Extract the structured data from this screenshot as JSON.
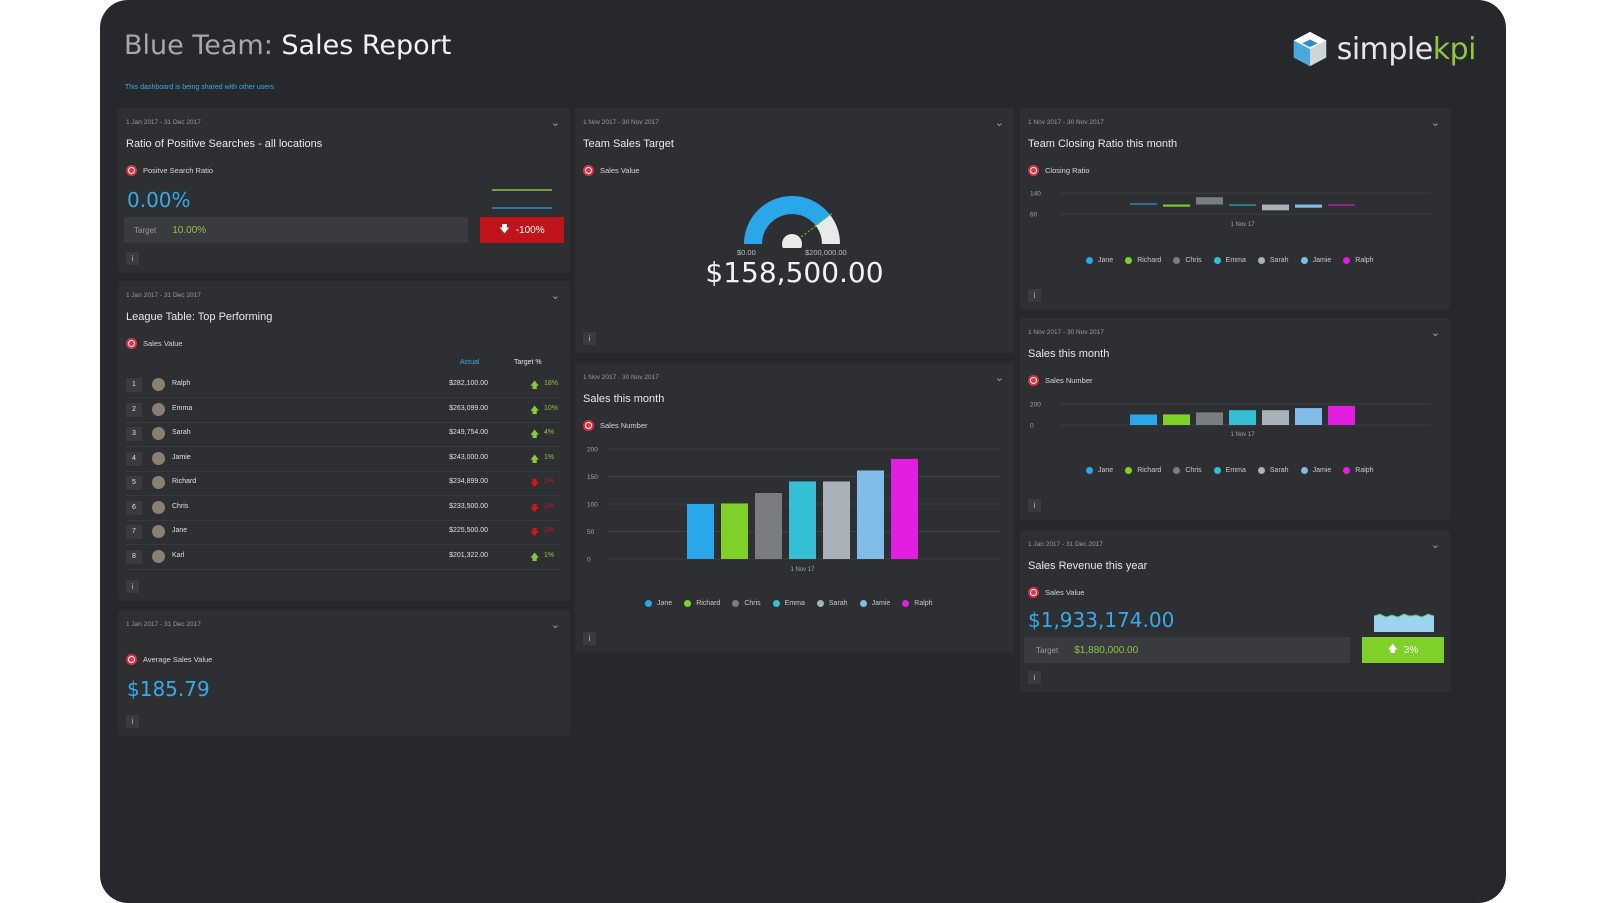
{
  "header": {
    "title_prefix": "Blue Team:",
    "title_main": "Sales Report",
    "shared_note": "This dashboard is being shared with other users",
    "logo_text_a": "simple",
    "logo_text_b": "kpi"
  },
  "colors": {
    "Jane": "#2aa7e8",
    "Richard": "#7fd12a",
    "Chris": "#7a7d80",
    "Emma": "#35bfd4",
    "Sarah": "#a9b2b8",
    "Jamie": "#7fbde8",
    "Ralph": "#e21ee0",
    "up": "#8dc63f",
    "down": "#d2141c"
  },
  "people": [
    "Jane",
    "Richard",
    "Chris",
    "Emma",
    "Sarah",
    "Jamie",
    "Ralph"
  ],
  "panels": {
    "ratio": {
      "date": "1 Jan 2017 - 31 Dec 2017",
      "title": "Ratio of Positive Searches - all locations",
      "kpi": "Positve Search Ratio",
      "value": "0.00%",
      "target_label": "Target",
      "target_value": "10.00%",
      "change": "-100%",
      "info": "i"
    },
    "league": {
      "date": "1 Jan 2017 - 31 Dec 2017",
      "title": "League Table: Top Performing",
      "kpi": "Sales Value",
      "col_actual": "Actual",
      "col_target": "Target %",
      "info": "i",
      "rows": [
        {
          "rank": "1",
          "name": "Ralph",
          "value": "$282,100.00",
          "pct": "18%",
          "dir": "up"
        },
        {
          "rank": "2",
          "name": "Emma",
          "value": "$263,099.00",
          "pct": "10%",
          "dir": "up"
        },
        {
          "rank": "3",
          "name": "Sarah",
          "value": "$249,754.00",
          "pct": "4%",
          "dir": "up"
        },
        {
          "rank": "4",
          "name": "Jamie",
          "value": "$243,000.00",
          "pct": "1%",
          "dir": "up"
        },
        {
          "rank": "5",
          "name": "Richard",
          "value": "$234,899.00",
          "pct": "1%",
          "dir": "down"
        },
        {
          "rank": "6",
          "name": "Chris",
          "value": "$233,500.00",
          "pct": "1%",
          "dir": "down"
        },
        {
          "rank": "7",
          "name": "Jane",
          "value": "$225,500.00",
          "pct": "1%",
          "dir": "down"
        },
        {
          "rank": "8",
          "name": "Karl",
          "value": "$201,322.00",
          "pct": "1%",
          "dir": "up"
        }
      ]
    },
    "avg": {
      "date": "1 Jan 2017 - 31 Dec 2017",
      "kpi": "Average Sales Value",
      "value": "$185.79",
      "info": "i"
    },
    "target": {
      "date": "1 Nov 2017 - 30 Nov 2017",
      "title": "Team Sales Target",
      "kpi": "Sales Value",
      "min": "$0.00",
      "max": "$200,000.00",
      "value": "$158,500.00",
      "fraction": 0.7925,
      "info": "i"
    },
    "salesmonth_mid": {
      "date": "1 Nov 2017 - 30 Nov 2017",
      "title": "Sales this month",
      "kpi": "Sales Number",
      "info": "i"
    },
    "closing": {
      "date": "1 Nov 2017 - 30 Nov 2017",
      "title": "Team Closing Ratio this month",
      "kpi": "Closing Ratio",
      "info": "i"
    },
    "salesmonth_right": {
      "date": "1 Nov 2017 - 30 Nov 2017",
      "title": "Sales this month",
      "kpi": "Sales Number",
      "info": "i"
    },
    "revenue": {
      "date": "1 Jan 2017 - 31 Dec 2017",
      "title": "Sales Revenue this year",
      "kpi": "Sales Value",
      "value": "$1,933,174.00",
      "target_label": "Target",
      "target_value": "$1,880,000.00",
      "change": "3%",
      "info": "i"
    }
  },
  "chart_data": [
    {
      "type": "bar",
      "title": "Sales this month",
      "categories": [
        "1 Nov 17"
      ],
      "series": [
        {
          "name": "Jane",
          "values": [
            100
          ]
        },
        {
          "name": "Richard",
          "values": [
            101
          ]
        },
        {
          "name": "Chris",
          "values": [
            120
          ]
        },
        {
          "name": "Emma",
          "values": [
            141
          ]
        },
        {
          "name": "Sarah",
          "values": [
            141
          ]
        },
        {
          "name": "Jamie",
          "values": [
            161
          ]
        },
        {
          "name": "Ralph",
          "values": [
            182
          ]
        }
      ],
      "yticks": [
        "0",
        "50",
        "100",
        "150",
        "200"
      ],
      "ylim": [
        0,
        200
      ],
      "grid": true,
      "legend": "bottom"
    },
    {
      "type": "bar",
      "title": "Team Closing Ratio this month",
      "categories": [
        "1 Nov 17"
      ],
      "series": [
        {
          "name": "Jane",
          "values": [
            100
          ]
        },
        {
          "name": "Richard",
          "values": [
            88
          ]
        },
        {
          "name": "Chris",
          "values": [
            124
          ]
        },
        {
          "name": "Emma",
          "values": [
            96
          ]
        },
        {
          "name": "Sarah",
          "values": [
            74
          ]
        },
        {
          "name": "Jamie",
          "values": [
            84
          ]
        },
        {
          "name": "Ralph",
          "values": [
            96
          ]
        }
      ],
      "yticks": [
        "60",
        "140"
      ],
      "ylim": [
        60,
        140
      ],
      "grid": true,
      "legend": "bottom"
    },
    {
      "type": "bar",
      "title": "Sales this month",
      "categories": [
        "1 Nov 17"
      ],
      "series": [
        {
          "name": "Jane",
          "values": [
            100
          ]
        },
        {
          "name": "Richard",
          "values": [
            101
          ]
        },
        {
          "name": "Chris",
          "values": [
            120
          ]
        },
        {
          "name": "Emma",
          "values": [
            141
          ]
        },
        {
          "name": "Sarah",
          "values": [
            141
          ]
        },
        {
          "name": "Jamie",
          "values": [
            161
          ]
        },
        {
          "name": "Ralph",
          "values": [
            182
          ]
        }
      ],
      "yticks": [
        "0",
        "200"
      ],
      "ylim": [
        0,
        200
      ],
      "grid": true,
      "legend": "bottom"
    }
  ]
}
